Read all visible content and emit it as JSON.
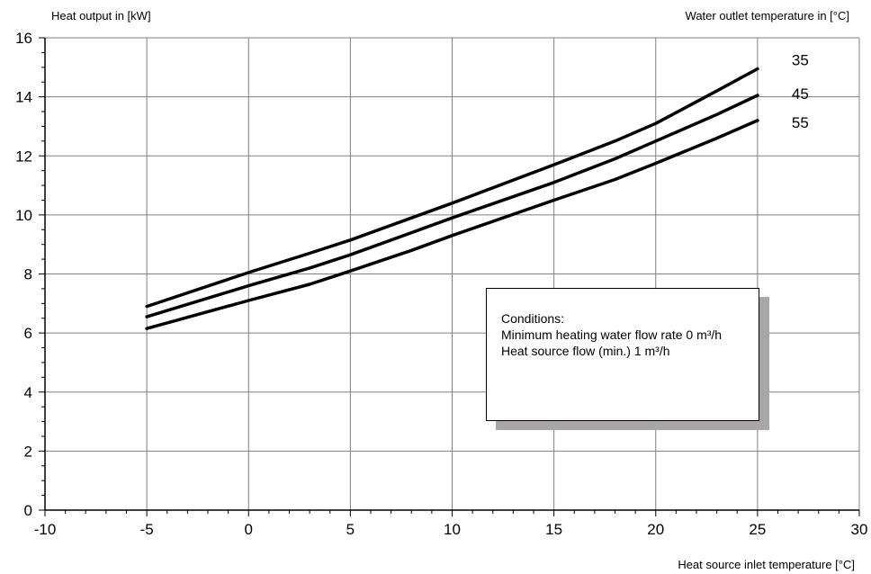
{
  "chart_data": {
    "type": "line",
    "ylabel": "Heat output in [kW]",
    "legend_title": "Water outlet temperature in [°C]",
    "xlabel": "Heat source inlet temperature [°C]",
    "xlim": [
      -10,
      30
    ],
    "ylim": [
      0,
      16
    ],
    "x_ticks": [
      -10,
      -5,
      0,
      5,
      10,
      15,
      20,
      25,
      30
    ],
    "y_ticks": [
      0,
      2,
      4,
      6,
      8,
      10,
      12,
      14,
      16
    ],
    "grid": true,
    "series": [
      {
        "name": "35",
        "x": [
          -5,
          0,
          3,
          5,
          8,
          10,
          15,
          18,
          20,
          23,
          25
        ],
        "y": [
          6.9,
          8.05,
          8.7,
          9.15,
          9.9,
          10.4,
          11.7,
          12.5,
          13.1,
          14.2,
          14.95
        ]
      },
      {
        "name": "45",
        "x": [
          -5,
          0,
          3,
          5,
          8,
          10,
          15,
          18,
          20,
          23,
          25
        ],
        "y": [
          6.55,
          7.6,
          8.2,
          8.65,
          9.4,
          9.9,
          11.1,
          11.9,
          12.5,
          13.4,
          14.05
        ]
      },
      {
        "name": "55",
        "x": [
          -5,
          0,
          3,
          5,
          8,
          10,
          15,
          18,
          20,
          23,
          25
        ],
        "y": [
          6.15,
          7.1,
          7.65,
          8.1,
          8.8,
          9.3,
          10.5,
          11.2,
          11.75,
          12.6,
          13.2
        ]
      }
    ],
    "conditions_box": {
      "title": "Conditions:",
      "line1": "Minimum heating water flow rate 0 m³/h",
      "line2": "Heat source flow (min.) 1 m³/h"
    }
  }
}
